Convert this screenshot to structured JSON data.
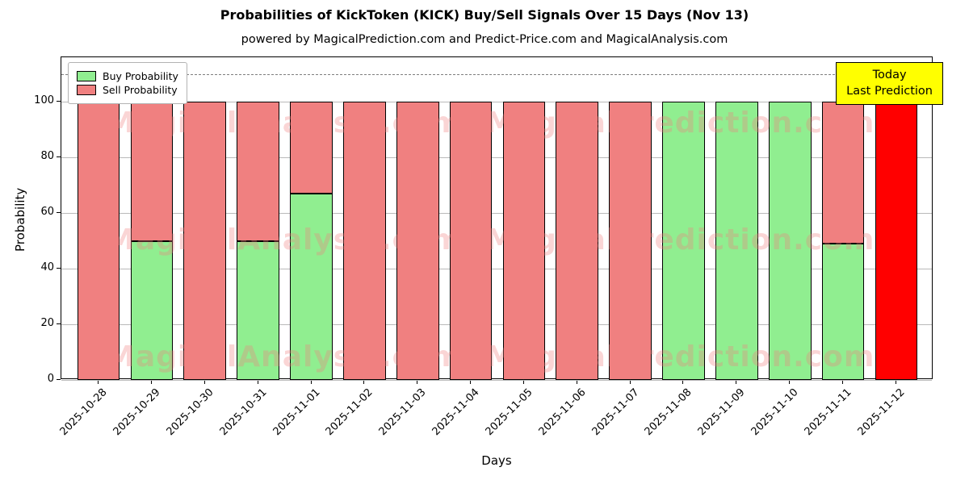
{
  "chart_data": {
    "type": "bar",
    "stacked": true,
    "title": "Probabilities of KickToken (KICK) Buy/Sell Signals Over 15 Days (Nov 13)",
    "subtitle": "powered by MagicalPrediction.com and Predict-Price.com and MagicalAnalysis.com",
    "xlabel": "Days",
    "ylabel": "Probability",
    "ylim": [
      0,
      116
    ],
    "yticks": [
      0,
      20,
      40,
      60,
      80,
      100
    ],
    "dashed_line_y": 110,
    "grid": true,
    "legend_position": "upper-left",
    "categories": [
      "2025-10-28",
      "2025-10-29",
      "2025-10-30",
      "2025-10-31",
      "2025-11-01",
      "2025-11-02",
      "2025-11-03",
      "2025-11-04",
      "2025-11-05",
      "2025-11-06",
      "2025-11-07",
      "2025-11-08",
      "2025-11-09",
      "2025-11-10",
      "2025-11-11",
      "2025-11-12"
    ],
    "series": [
      {
        "name": "Buy Probability",
        "color": "#90ee90",
        "values": [
          0,
          50,
          0,
          50,
          67,
          0,
          0,
          0,
          0,
          0,
          0,
          100,
          100,
          100,
          49,
          0
        ]
      },
      {
        "name": "Sell Probability",
        "color": "#f08080",
        "values": [
          100,
          50,
          100,
          50,
          33,
          100,
          100,
          100,
          100,
          100,
          100,
          0,
          0,
          0,
          51,
          0
        ]
      }
    ],
    "today_bar": {
      "index": 15,
      "value": 100,
      "color": "#ff0000"
    },
    "annotation": {
      "line1": "Today",
      "line2": "Last Prediction",
      "bg_color": "#ffff00"
    },
    "watermarks": [
      "MagicalAnalysis.com",
      "MagicalPrediction.com"
    ],
    "watermark_color": "#f08080"
  }
}
